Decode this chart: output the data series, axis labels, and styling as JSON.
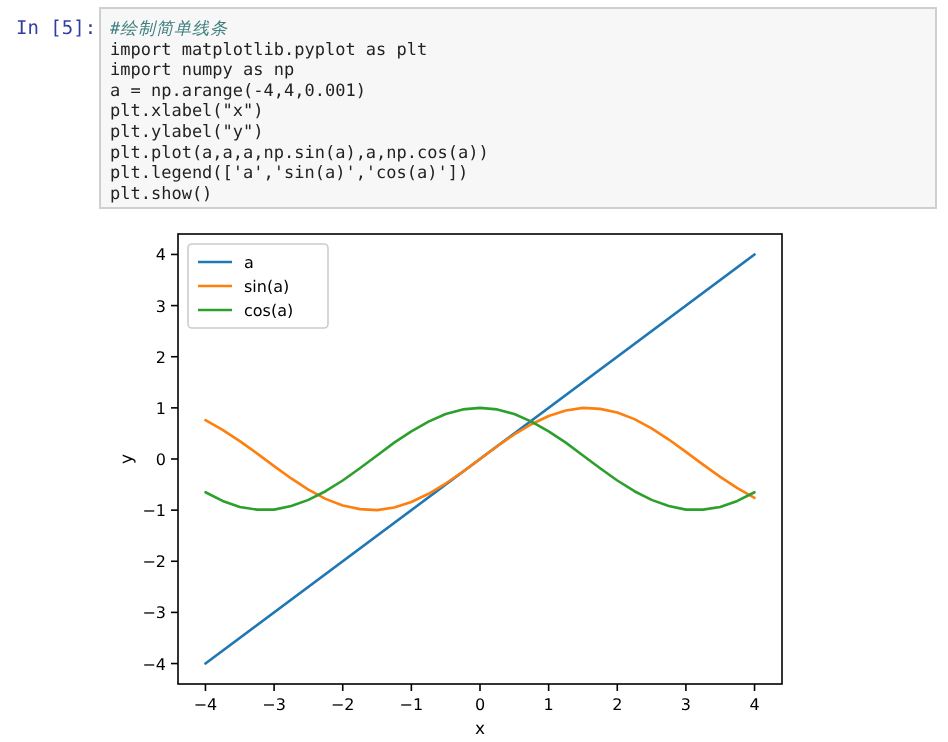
{
  "chart_data": {
    "type": "line",
    "xlabel": "x",
    "ylabel": "y",
    "annotations": [
      "In [5]:",
      "#绘制简单线条",
      "import matplotlib.pyplot as plt",
      "import numpy as np",
      "a = np.arange(-4,4,0.001)",
      "plt.xlabel(\"x\")",
      "plt.ylabel(\"y\")",
      "plt.plot(a,a,a,np.sin(a),a,np.cos(a))",
      "plt.legend(['a','sin(a)','cos(a)'])",
      "plt.show()"
    ],
    "xlim": [
      -4.4,
      4.4
    ],
    "ylim": [
      -4.4,
      4.4
    ],
    "xticks": [
      -4,
      -3,
      -2,
      -1,
      0,
      1,
      2,
      3,
      4
    ],
    "yticks": [
      -4,
      -3,
      -2,
      -1,
      0,
      1,
      2,
      3,
      4
    ],
    "grid": false,
    "legend": "top left",
    "series": [
      {
        "name": "a",
        "color": "#1f77b4",
        "x": [
          -4,
          4
        ],
        "values": [
          -4,
          4
        ]
      },
      {
        "name": "sin(a)",
        "color": "#ff7f0e",
        "x": [
          -4,
          -3.75,
          -3.5,
          -3.25,
          -3,
          -2.75,
          -2.5,
          -2.25,
          -2,
          -1.75,
          -1.5,
          -1.25,
          -1,
          -0.75,
          -0.5,
          -0.25,
          0,
          0.25,
          0.5,
          0.75,
          1,
          1.25,
          1.5,
          1.75,
          2,
          2.25,
          2.5,
          2.75,
          3,
          3.25,
          3.5,
          3.75,
          4
        ],
        "values": [
          0.76,
          0.57,
          0.35,
          0.11,
          -0.14,
          -0.38,
          -0.6,
          -0.78,
          -0.91,
          -0.98,
          -1.0,
          -0.95,
          -0.84,
          -0.68,
          -0.48,
          -0.25,
          0,
          0.25,
          0.48,
          0.68,
          0.84,
          0.95,
          1.0,
          0.98,
          0.91,
          0.78,
          0.6,
          0.38,
          0.14,
          -0.11,
          -0.35,
          -0.57,
          -0.76
        ]
      },
      {
        "name": "cos(a)",
        "color": "#2ca02c",
        "x": [
          -4,
          -3.75,
          -3.5,
          -3.25,
          -3,
          -2.75,
          -2.5,
          -2.25,
          -2,
          -1.75,
          -1.5,
          -1.25,
          -1,
          -0.75,
          -0.5,
          -0.25,
          0,
          0.25,
          0.5,
          0.75,
          1,
          1.25,
          1.5,
          1.75,
          2,
          2.25,
          2.5,
          2.75,
          3,
          3.25,
          3.5,
          3.75,
          4
        ],
        "values": [
          -0.65,
          -0.82,
          -0.94,
          -0.99,
          -0.99,
          -0.92,
          -0.8,
          -0.63,
          -0.42,
          -0.18,
          0.07,
          0.32,
          0.54,
          0.73,
          0.88,
          0.97,
          1,
          0.97,
          0.88,
          0.73,
          0.54,
          0.32,
          0.07,
          -0.18,
          -0.42,
          -0.63,
          -0.8,
          -0.92,
          -0.99,
          -0.99,
          -0.94,
          -0.82,
          -0.65
        ]
      }
    ]
  }
}
